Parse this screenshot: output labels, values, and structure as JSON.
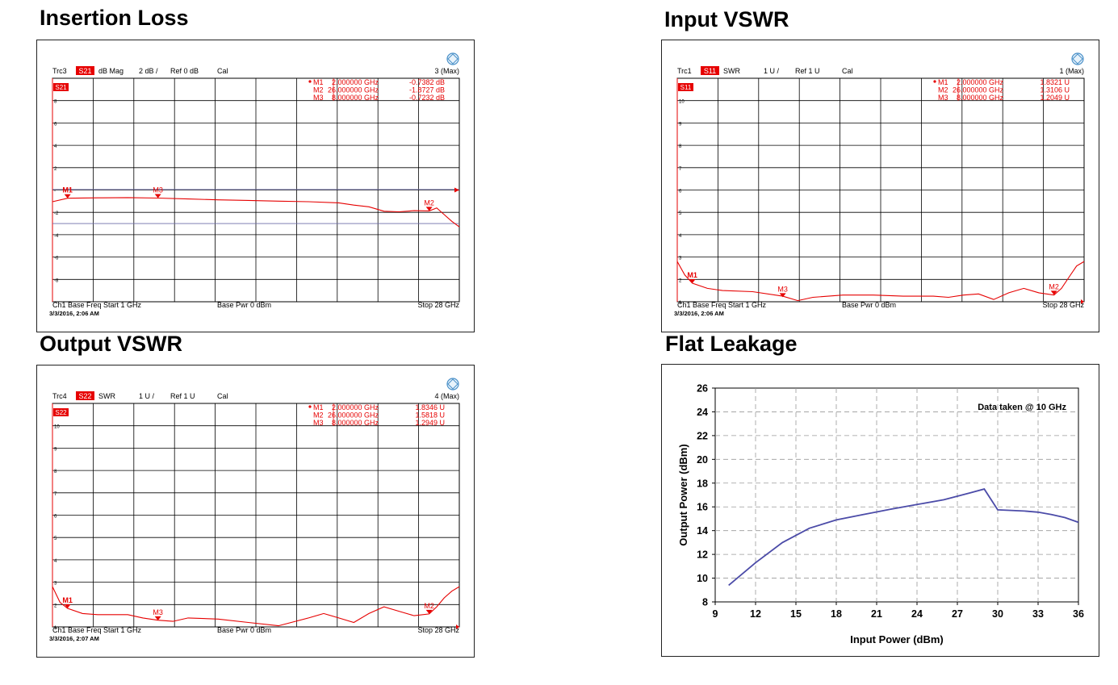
{
  "colors": {
    "trace": "#e60000",
    "grid": "#000000",
    "leakage_line": "#4b4ba8",
    "background": "#ffffff"
  },
  "icons": {
    "vna_logo": "rohde-schwarz-logo-icon",
    "marker": "triangle-marker-icon"
  },
  "panels": [
    {
      "key": "insertion_loss",
      "title": "Insertion Loss",
      "trace_name": "Trc3",
      "param": "S21",
      "format": "dB Mag",
      "scale": "2 dB /",
      "ref": "Ref 0 dB",
      "cal": "Cal",
      "max_label": "3 (Max)",
      "channel_label": "Ch1  Base Freq  Start  1 GHz",
      "power_label": "Base Pwr  0 dBm",
      "stop_label": "Stop  28 GHz",
      "timestamp": "3/3/2016, 2:06 AM",
      "markers": [
        {
          "id": "M1",
          "row_id": "M1",
          "freq": "2.000000 GHz",
          "value": "-0.7382 dB",
          "freq_ghz": 2,
          "y": -0.7382
        },
        {
          "id": "M2",
          "row_id": "M2",
          "freq": "26.000000 GHz",
          "value": "-1.8727 dB",
          "freq_ghz": 26,
          "y": -1.8727
        },
        {
          "id": "M3",
          "row_id": "M3",
          "freq": "8.000000 GHz",
          "value": "-0.7232 dB",
          "freq_ghz": 8,
          "y": -0.7232
        }
      ],
      "y_ticks": [
        "8",
        "6",
        "4",
        "2",
        "-",
        "-2",
        "-4",
        "-6",
        "-8"
      ],
      "y_tick_values": [
        8,
        6,
        4,
        2,
        0,
        -2,
        -4,
        -6,
        -8
      ],
      "chart_data": {
        "type": "line",
        "x_unit": "GHz",
        "xlim": [
          1,
          28
        ],
        "ylim": [
          -10,
          10
        ],
        "series": [
          {
            "x": [
              1,
              2,
              4,
              6,
              8,
              10,
              12,
              14,
              16,
              18,
              20,
              21,
              22,
              23,
              24,
              25,
              26,
              26.5,
              27,
              27.5,
              28
            ],
            "y": [
              -1.05,
              -0.74,
              -0.7,
              -0.68,
              -0.72,
              -0.8,
              -0.88,
              -0.93,
              -1.0,
              -1.05,
              -1.15,
              -1.35,
              -1.5,
              -1.9,
              -1.95,
              -1.85,
              -1.87,
              -1.6,
              -2.2,
              -2.8,
              -3.3
            ]
          }
        ],
        "limit_lines_y": [
          0.05,
          -3.0
        ]
      }
    },
    {
      "key": "input_vswr",
      "title": "Input VSWR",
      "trace_name": "Trc1",
      "param": "S11",
      "format": "SWR",
      "scale": "1 U /",
      "ref": "Ref 1 U",
      "cal": "Cal",
      "max_label": "1 (Max)",
      "channel_label": "Ch1  Base Freq  Start  1 GHz",
      "power_label": "Base Pwr  0 dBm",
      "stop_label": "Stop  28 GHz",
      "timestamp": "3/3/2016, 2:06 AM",
      "markers": [
        {
          "id": "M1",
          "row_id": "M1",
          "freq": "2.000000 GHz",
          "value": "1.8321 U",
          "freq_ghz": 2,
          "y": 1.8321
        },
        {
          "id": "M2",
          "row_id": "M2",
          "freq": "26.000000 GHz",
          "value": "1.3106 U",
          "freq_ghz": 26,
          "y": 1.3106
        },
        {
          "id": "M3",
          "row_id": "M3",
          "freq": "8.000000 GHz",
          "value": "1.2049 U",
          "freq_ghz": 8,
          "y": 1.2049
        }
      ],
      "y_ticks": [
        "10",
        "9",
        "8",
        "7",
        "6",
        "5",
        "4",
        "3",
        "2",
        "1"
      ],
      "y_tick_values": [
        10,
        9,
        8,
        7,
        6,
        5,
        4,
        3,
        2,
        1
      ],
      "chart_data": {
        "type": "line",
        "x_unit": "GHz",
        "xlim": [
          1,
          28
        ],
        "ylim": [
          1,
          11
        ],
        "series": [
          {
            "x": [
              1,
              1.5,
              2,
              3,
              4,
              6,
              8,
              9,
              10,
              12,
              14,
              16,
              18,
              19,
              20,
              21,
              22,
              23,
              24,
              25,
              26,
              26.5,
              27,
              27.5,
              28
            ],
            "y": [
              2.8,
              2.2,
              1.83,
              1.6,
              1.5,
              1.45,
              1.25,
              1.05,
              1.2,
              1.3,
              1.3,
              1.25,
              1.25,
              1.2,
              1.3,
              1.35,
              1.1,
              1.4,
              1.6,
              1.4,
              1.3,
              1.6,
              2.1,
              2.6,
              2.8
            ]
          }
        ]
      }
    },
    {
      "key": "output_vswr",
      "title": "Output VSWR",
      "trace_name": "Trc4",
      "param": "S22",
      "format": "SWR",
      "scale": "1 U /",
      "ref": "Ref 1 U",
      "cal": "Cal",
      "max_label": "4 (Max)",
      "channel_label": "Ch1  Base Freq  Start  1 GHz",
      "power_label": "Base Pwr  0 dBm",
      "stop_label": "Stop  28 GHz",
      "timestamp": "3/3/2016, 2:07 AM",
      "markers": [
        {
          "id": "M1",
          "row_id": "M1",
          "freq": "2.000000 GHz",
          "value": "1.8346 U",
          "freq_ghz": 2,
          "y": 1.8346
        },
        {
          "id": "M2",
          "row_id": "M2",
          "freq": "26.000000 GHz",
          "value": "1.5818 U",
          "freq_ghz": 26,
          "y": 1.5818
        },
        {
          "id": "M3",
          "row_id": "M3",
          "freq": "8.000000 GHz",
          "value": "1.2949 U",
          "freq_ghz": 8,
          "y": 1.2949
        }
      ],
      "y_ticks": [
        "10",
        "9",
        "8",
        "7",
        "6",
        "5",
        "4",
        "3",
        "2",
        "1"
      ],
      "y_tick_values": [
        10,
        9,
        8,
        7,
        6,
        5,
        4,
        3,
        2,
        1
      ],
      "chart_data": {
        "type": "line",
        "x_unit": "GHz",
        "xlim": [
          1,
          28
        ],
        "ylim": [
          1,
          11
        ],
        "series": [
          {
            "x": [
              1,
              1.5,
              2,
              3,
              4,
              6,
              7,
              8,
              9,
              10,
              12,
              14,
              16,
              18,
              19,
              20,
              21,
              22,
              23,
              24,
              25,
              26,
              26.5,
              27,
              27.5,
              28
            ],
            "y": [
              2.8,
              2.1,
              1.83,
              1.6,
              1.55,
              1.55,
              1.4,
              1.3,
              1.25,
              1.4,
              1.35,
              1.2,
              1.05,
              1.4,
              1.6,
              1.4,
              1.2,
              1.6,
              1.9,
              1.7,
              1.5,
              1.58,
              1.9,
              2.3,
              2.6,
              2.8
            ]
          }
        ]
      }
    }
  ],
  "flat_leakage": {
    "title": "Flat Leakage",
    "annotation": "Data taken @ 10 GHz",
    "chart_data": {
      "type": "line",
      "xlabel": "Input Power (dBm)",
      "ylabel": "Output Power (dBm)",
      "xlim": [
        9,
        36
      ],
      "ylim": [
        8,
        26
      ],
      "x_ticks": [
        9,
        12,
        15,
        18,
        21,
        24,
        27,
        30,
        33,
        36
      ],
      "y_ticks": [
        8,
        10,
        12,
        14,
        16,
        18,
        20,
        22,
        24,
        26
      ],
      "series": [
        {
          "x": [
            10,
            12,
            14,
            16,
            18,
            20,
            22,
            24,
            26,
            27,
            28,
            29,
            30,
            32,
            33,
            34,
            35,
            36
          ],
          "y": [
            9.4,
            11.3,
            13.0,
            14.2,
            14.9,
            15.35,
            15.8,
            16.2,
            16.6,
            16.9,
            17.2,
            17.5,
            15.75,
            15.65,
            15.55,
            15.35,
            15.1,
            14.7
          ]
        }
      ],
      "grid": true,
      "grid_style": "dashed"
    }
  }
}
